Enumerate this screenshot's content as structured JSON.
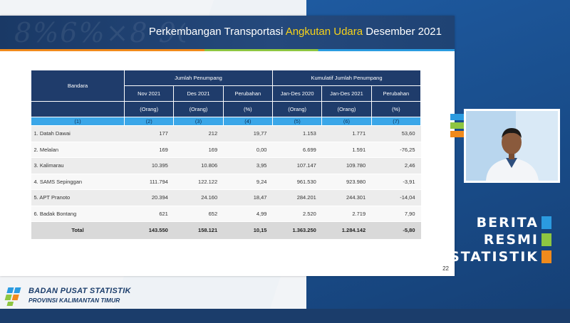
{
  "slide": {
    "title_part1": "Perkembangan Transportasi",
    "title_highlight": "Angkutan Udara",
    "title_part2": "Desember 2021",
    "page_number": "22"
  },
  "table": {
    "head_bandara": "Bandara",
    "group_jumlah": "Jumlah Penumpang",
    "group_kumulatif": "Kumulatif Jumlah Penumpang",
    "col_nov": "Nov 2021",
    "col_des": "Des 2021",
    "col_perubahan1": "Perubahan",
    "col_jan_des_2020": "Jan-Des 2020",
    "col_jan_des_2021": "Jan-Des 2021",
    "col_perubahan2": "Perubahan",
    "unit_orang": "(Orang)",
    "unit_orang_alt": "(Orang)",
    "unit_pct": "(%)",
    "col_numbers": [
      "(1)",
      "(2)",
      "(3)",
      "(4)",
      "(5)",
      "(6)",
      "(7)"
    ],
    "rows": [
      {
        "name": "1. Datah Dawai",
        "nov": "177",
        "des": "212",
        "chg": "19,77",
        "cum20": "1.153",
        "cum21": "1.771",
        "cumchg": "53,60"
      },
      {
        "name": "2. Melalan",
        "nov": "169",
        "des": "169",
        "chg": "0,00",
        "cum20": "6.699",
        "cum21": "1.591",
        "cumchg": "-76,25"
      },
      {
        "name": "3. Kalimarau",
        "nov": "10.395",
        "des": "10.806",
        "chg": "3,95",
        "cum20": "107.147",
        "cum21": "109.780",
        "cumchg": "2,46"
      },
      {
        "name": "4. SAMS Sepinggan",
        "nov": "111.794",
        "des": "122.122",
        "chg": "9,24",
        "cum20": "961.530",
        "cum21": "923.980",
        "cumchg": "-3,91"
      },
      {
        "name": "5. APT Pranoto",
        "nov": "20.394",
        "des": "24.160",
        "chg": "18,47",
        "cum20": "284.201",
        "cum21": "244.301",
        "cumchg": "-14,04"
      },
      {
        "name": "6. Badak Bontang",
        "nov": "621",
        "des": "652",
        "chg": "4,99",
        "cum20": "2.520",
        "cum21": "2.719",
        "cumchg": "7,90"
      }
    ],
    "total": {
      "name": "Total",
      "nov": "143.550",
      "des": "158.121",
      "chg": "10,15",
      "cum20": "1.363.250",
      "cum21": "1.284.142",
      "cumchg": "-5,80"
    }
  },
  "branding": {
    "berita": "BERITA",
    "resmi": "RESMI",
    "statistik": "STATISTIK",
    "bps_name": "BADAN PUSAT STATISTIK",
    "bps_province": "PROVINSI KALIMANTAN TIMUR"
  },
  "colors": {
    "header_navy": "#1f3c6b",
    "column_number_blue": "#3aa6e8",
    "highlight_yellow": "#f7d21a",
    "bps_blue": "#2b9be0",
    "bps_green": "#8ec641",
    "bps_orange": "#f08a1c"
  },
  "icons": {
    "bps_logo": "bps-logo-icon",
    "presenter": "presenter-video"
  }
}
